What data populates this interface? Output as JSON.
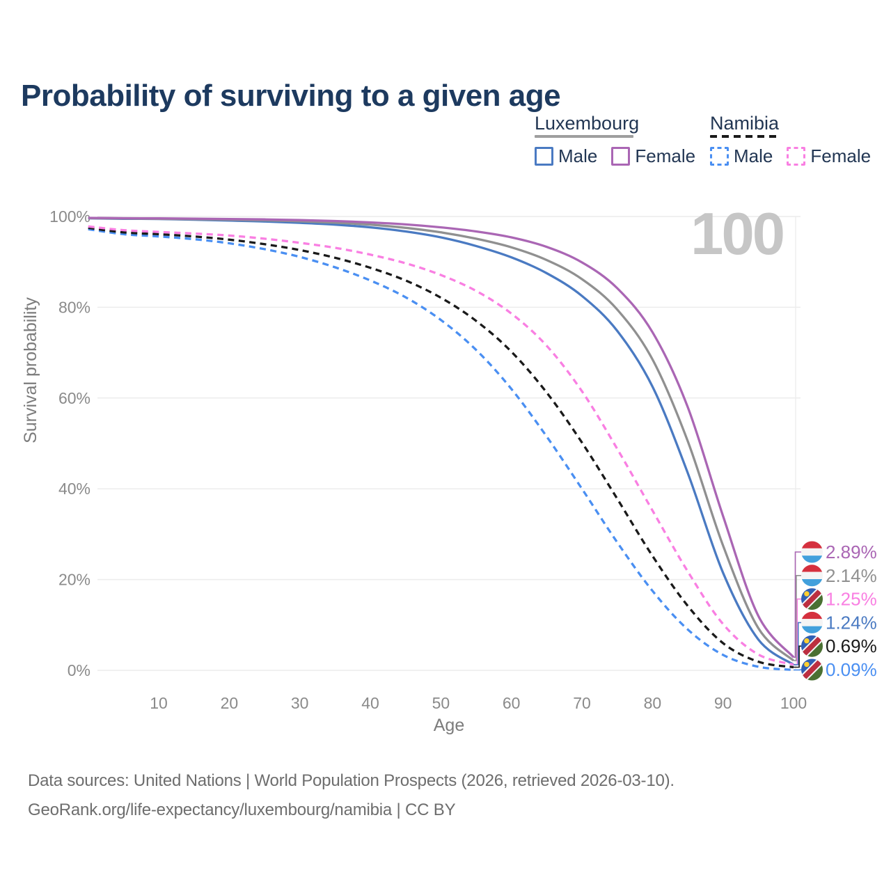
{
  "title": "Probability of surviving to a given age",
  "watermark": "100",
  "legend": {
    "groups": [
      {
        "label": "Luxembourg",
        "line_style": "solid",
        "underline_color": "#9e9e9e",
        "items": [
          {
            "label": "Male",
            "color": "#4a7ac2"
          },
          {
            "label": "Female",
            "color": "#aa66b4"
          }
        ]
      },
      {
        "label": "Namibia",
        "line_style": "dashed",
        "underline_color": "#1a1a1a",
        "items": [
          {
            "label": "Male",
            "color": "#4a8ff2"
          },
          {
            "label": "Female",
            "color": "#f97fe2"
          }
        ]
      }
    ]
  },
  "chart_data": {
    "type": "line",
    "title": "Probability of surviving to a given age",
    "xlabel": "Age",
    "ylabel": "Survival probability",
    "x_ticks": [
      10,
      20,
      30,
      40,
      50,
      60,
      70,
      80,
      90,
      100
    ],
    "y_ticks": [
      0,
      20,
      40,
      60,
      80,
      100
    ],
    "y_tick_suffix": "%",
    "xlim": [
      0,
      100
    ],
    "ylim": [
      0,
      100
    ],
    "grid": "horizontal",
    "legend_position": "top-right",
    "current_age_marker": 100,
    "x": [
      0,
      5,
      10,
      15,
      20,
      25,
      30,
      35,
      40,
      45,
      50,
      55,
      60,
      65,
      70,
      75,
      80,
      85,
      90,
      95,
      100
    ],
    "series": [
      {
        "id": "lux-male",
        "name": "Luxembourg Male",
        "color": "#4a7ac2",
        "dash": false,
        "flag": "luxembourg",
        "end_label": "1.24%",
        "values": [
          99.6,
          99.5,
          99.45,
          99.3,
          99.1,
          98.9,
          98.6,
          98.2,
          97.6,
          96.7,
          95.4,
          93.5,
          91.0,
          87.5,
          82.5,
          74.8,
          62.5,
          43.5,
          21.5,
          6.8,
          1.24
        ]
      },
      {
        "id": "lux-total",
        "name": "Luxembourg Both sexes",
        "color": "#909090",
        "dash": false,
        "flag": "luxembourg",
        "end_label": "2.14%",
        "values": [
          99.65,
          99.55,
          99.5,
          99.42,
          99.3,
          99.15,
          98.95,
          98.65,
          98.2,
          97.5,
          96.5,
          95.1,
          93.2,
          90.4,
          86.2,
          79.5,
          68.5,
          50.5,
          27.5,
          9.3,
          2.14
        ]
      },
      {
        "id": "lux-female",
        "name": "Luxembourg Female",
        "color": "#aa66b4",
        "dash": false,
        "flag": "luxembourg",
        "end_label": "2.89%",
        "values": [
          99.7,
          99.62,
          99.58,
          99.52,
          99.45,
          99.35,
          99.2,
          99.0,
          98.7,
          98.25,
          97.6,
          96.7,
          95.4,
          93.3,
          89.9,
          84.2,
          74.5,
          58.0,
          34.0,
          12.0,
          2.89
        ]
      },
      {
        "id": "nam-male",
        "name": "Namibia Male",
        "color": "#4a8ff2",
        "dash": true,
        "flag": "namibia",
        "end_label": "0.09%",
        "values": [
          97.2,
          96.1,
          95.6,
          95.0,
          94.1,
          92.8,
          91.1,
          88.8,
          85.9,
          82.2,
          77.2,
          70.6,
          62.0,
          51.5,
          40.0,
          28.2,
          17.5,
          9.0,
          3.4,
          0.8,
          0.09
        ]
      },
      {
        "id": "nam-total",
        "name": "Namibia Both sexes",
        "color": "#1a1a1a",
        "dash": true,
        "flag": "namibia",
        "end_label": "0.69%",
        "values": [
          97.5,
          96.5,
          96.1,
          95.6,
          94.9,
          93.9,
          92.6,
          90.9,
          88.7,
          85.9,
          82.1,
          77.0,
          70.2,
          61.2,
          50.2,
          37.8,
          25.2,
          14.2,
          6.0,
          1.9,
          0.69
        ]
      },
      {
        "id": "nam-female",
        "name": "Namibia Female",
        "color": "#f97fe2",
        "dash": true,
        "flag": "namibia",
        "end_label": "1.25%",
        "values": [
          97.8,
          97.0,
          96.6,
          96.25,
          95.8,
          95.1,
          94.2,
          93.1,
          91.6,
          89.7,
          87.1,
          83.6,
          78.6,
          71.5,
          61.5,
          48.8,
          35.2,
          21.8,
          10.2,
          3.5,
          1.25
        ]
      }
    ]
  },
  "footer": {
    "line1": "Data sources: United Nations | World Population Prospects (2026, retrieved 2026-03-10).",
    "line2": "GeoRank.org/life-expectancy/luxembourg/namibia | CC BY"
  }
}
